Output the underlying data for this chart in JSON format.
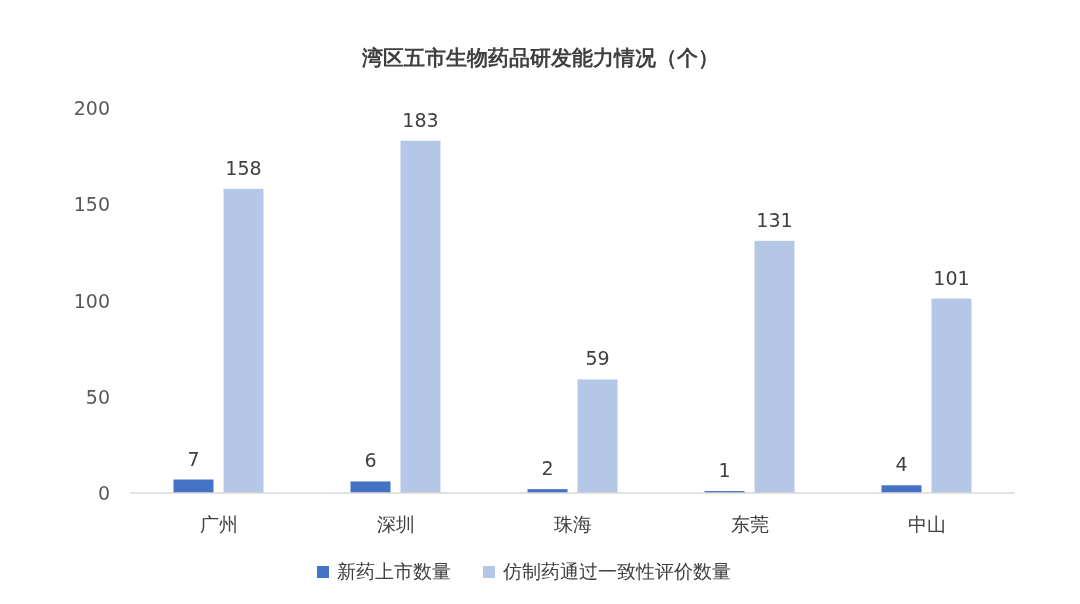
{
  "chart_data": {
    "type": "bar",
    "title": "湾区五市生物药品研发能力情况（个）",
    "categories": [
      "广州",
      "深圳",
      "珠海",
      "东莞",
      "中山"
    ],
    "series": [
      {
        "name": "新药上市数量",
        "color": "#4472c4",
        "values": [
          7,
          6,
          2,
          1,
          4
        ]
      },
      {
        "name": "仿制药通过一致性评价数量",
        "color": "#b4c7e7",
        "values": [
          158,
          183,
          59,
          131,
          101
        ]
      }
    ],
    "ylim": [
      0,
      200
    ],
    "yticks": [
      0,
      50,
      100,
      150,
      200
    ],
    "data_labels": true,
    "legend": "bottom"
  }
}
